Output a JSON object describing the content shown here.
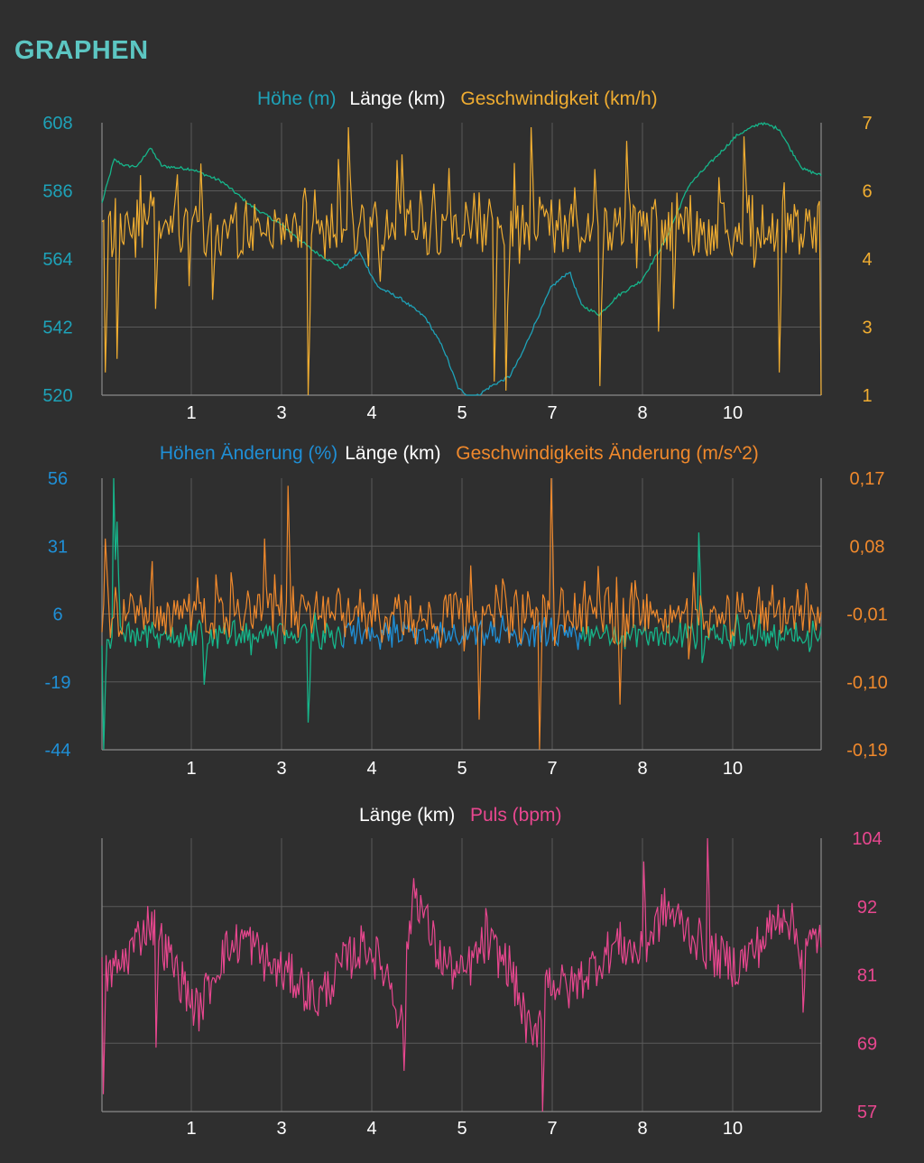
{
  "page": {
    "title": "GRAPHEN"
  },
  "colors": {
    "background": "#2f2f2f",
    "title": "#5cc6c2",
    "grid": "#5a5a5a",
    "axis": "#8a8a8a",
    "white": "#ffffff",
    "teal": "#1ea2b8",
    "green": "#16b58a",
    "speed": "#f0ad31",
    "blue": "#1f8fd6",
    "orange": "#f0892c",
    "pink": "#e8478f"
  },
  "chart_data": [
    {
      "type": "line",
      "legend": [
        {
          "label": "Höhe (m)",
          "color": "#1ea2b8"
        },
        {
          "label": "Länge (km)",
          "color": "#ffffff"
        },
        {
          "label": "Geschwindigkeit (km/h)",
          "color": "#f0ad31"
        }
      ],
      "x_label": "Länge (km)",
      "x_ticks": [
        "1",
        "3",
        "4",
        "5",
        "7",
        "8",
        "10"
      ],
      "x_range": [
        0,
        12
      ],
      "y_left_ticks": [
        "608",
        "586",
        "564",
        "542",
        "520"
      ],
      "y_right_ticks": [
        "7",
        "6",
        "4",
        "3",
        "1"
      ],
      "grid": true,
      "series": [
        {
          "name": "Höhe (m)",
          "axis": "left",
          "color": "#1ea2b8",
          "color_alt": "#16b58a",
          "x": [
            0,
            0.1,
            0.2,
            0.4,
            0.6,
            0.8,
            1.0,
            1.5,
            2.0,
            2.5,
            3.0,
            3.5,
            4.0,
            4.3,
            4.6,
            5.0,
            5.4,
            5.7,
            5.95,
            6.2,
            6.5,
            6.8,
            7.0,
            7.2,
            7.5,
            7.8,
            8.0,
            8.3,
            8.6,
            9.0,
            9.4,
            9.8,
            10.2,
            10.6,
            11.0,
            11.3,
            11.5,
            11.7,
            12.0
          ],
          "values": [
            582,
            589,
            596,
            594,
            594,
            600,
            594,
            593,
            589,
            581,
            575,
            567,
            561,
            566,
            555,
            551,
            545,
            535,
            522,
            519,
            523,
            526,
            533,
            542,
            555,
            560,
            549,
            546,
            552,
            557,
            570,
            588,
            596,
            604,
            608,
            606,
            599,
            593,
            591
          ],
          "noise": 0.5
        },
        {
          "name": "Geschwindigkeit (km/h)",
          "axis": "right",
          "color": "#f0ad31",
          "base": 4.7,
          "amplitude": 0.6,
          "spikes": [
            [
              0.05,
              1.5
            ],
            [
              0.25,
              1.8
            ],
            [
              0.9,
              2.9
            ],
            [
              1.45,
              3.4
            ],
            [
              1.85,
              3.1
            ],
            [
              3.45,
              1
            ],
            [
              3.95,
              6.2
            ],
            [
              4.1,
              6.9
            ],
            [
              4.65,
              3.5
            ],
            [
              6.55,
              1.3
            ],
            [
              6.75,
              1.1
            ],
            [
              7.15,
              6.9
            ],
            [
              8.3,
              1.2
            ],
            [
              8.75,
              6.6
            ],
            [
              9.3,
              2.4
            ],
            [
              9.55,
              2.9
            ],
            [
              10.7,
              6.7
            ],
            [
              11.3,
              1.5
            ],
            [
              12.0,
              1.0
            ],
            [
              1.65,
              6.1
            ],
            [
              5.0,
              6.3
            ],
            [
              5.8,
              6.0
            ],
            [
              10.3,
              5.8
            ]
          ]
        }
      ]
    },
    {
      "type": "line",
      "legend": [
        {
          "label": "Höhen Änderung (%)",
          "color": "#1f8fd6"
        },
        {
          "label": "Länge (km)",
          "color": "#ffffff"
        },
        {
          "label": "Geschwindigkeits Änderung (m/s^2)",
          "color": "#f0892c"
        }
      ],
      "x_label": "Länge (km)",
      "x_ticks": [
        "1",
        "3",
        "4",
        "5",
        "7",
        "8",
        "10"
      ],
      "x_range": [
        0,
        12
      ],
      "y_left_ticks": [
        "56",
        "31",
        "6",
        "-19",
        "-44"
      ],
      "y_right_ticks": [
        "0,17",
        "0,08",
        "-0,01",
        "-0,10",
        "-0,19"
      ],
      "grid": true,
      "series": [
        {
          "name": "Höhen Änderung (%)",
          "axis": "left",
          "color": "#1f8fd6",
          "color_alt": "#16b58a",
          "base": -2,
          "amplitude": 4,
          "spikes": [
            [
              0.02,
              -44
            ],
            [
              0.2,
              56
            ],
            [
              0.25,
              40
            ],
            [
              1.7,
              -20
            ],
            [
              3.45,
              -34
            ],
            [
              10.0,
              -12
            ],
            [
              9.95,
              36
            ],
            [
              10.6,
              6
            ],
            [
              11.8,
              -8
            ]
          ]
        },
        {
          "name": "Geschwindigkeits Änderung (m/s^2)",
          "axis": "right",
          "color": "#f0892c",
          "base": -0.01,
          "amplitude": 0.03,
          "spikes": [
            [
              3.1,
              0.16
            ],
            [
              6.3,
              -0.15
            ],
            [
              7.3,
              -0.19
            ],
            [
              7.5,
              0.17
            ],
            [
              8.65,
              -0.13
            ],
            [
              9.8,
              -0.07
            ],
            [
              0.05,
              0.09
            ],
            [
              2.7,
              0.09
            ]
          ]
        }
      ]
    },
    {
      "type": "line",
      "legend": [
        {
          "label": "Länge (km)",
          "color": "#ffffff"
        },
        {
          "label": "Puls (bpm)",
          "color": "#e8478f"
        }
      ],
      "x_label": "Länge (km)",
      "x_ticks": [
        "1",
        "3",
        "4",
        "5",
        "7",
        "8",
        "10"
      ],
      "x_range": [
        0,
        12
      ],
      "y_right_ticks": [
        "104",
        "92",
        "81",
        "69",
        "57"
      ],
      "grid": true,
      "series": [
        {
          "name": "Puls (bpm)",
          "axis": "right",
          "color": "#e8478f",
          "x": [
            0,
            0.3,
            0.8,
            1.2,
            1.6,
            2.0,
            2.4,
            2.8,
            3.2,
            3.6,
            4.0,
            4.4,
            4.8,
            5.0,
            5.2,
            5.6,
            6.0,
            6.4,
            6.8,
            7.2,
            7.4,
            7.8,
            8.2,
            8.6,
            9.0,
            9.4,
            9.8,
            10.2,
            10.6,
            11.0,
            11.4,
            11.7,
            12.0
          ],
          "values": [
            80,
            82,
            90,
            82,
            74,
            84,
            87,
            82,
            80,
            76,
            82,
            86,
            80,
            72,
            96,
            84,
            80,
            86,
            82,
            68,
            80,
            78,
            82,
            86,
            84,
            92,
            88,
            84,
            82,
            86,
            92,
            84,
            88
          ],
          "noise": 4,
          "spikes": [
            [
              0.02,
              60
            ],
            [
              7.35,
              57
            ],
            [
              5.05,
              64
            ],
            [
              0.9,
              68
            ],
            [
              10.1,
              104
            ],
            [
              9.05,
              100
            ],
            [
              6.4,
              92
            ],
            [
              11.7,
              74
            ]
          ]
        }
      ]
    }
  ]
}
